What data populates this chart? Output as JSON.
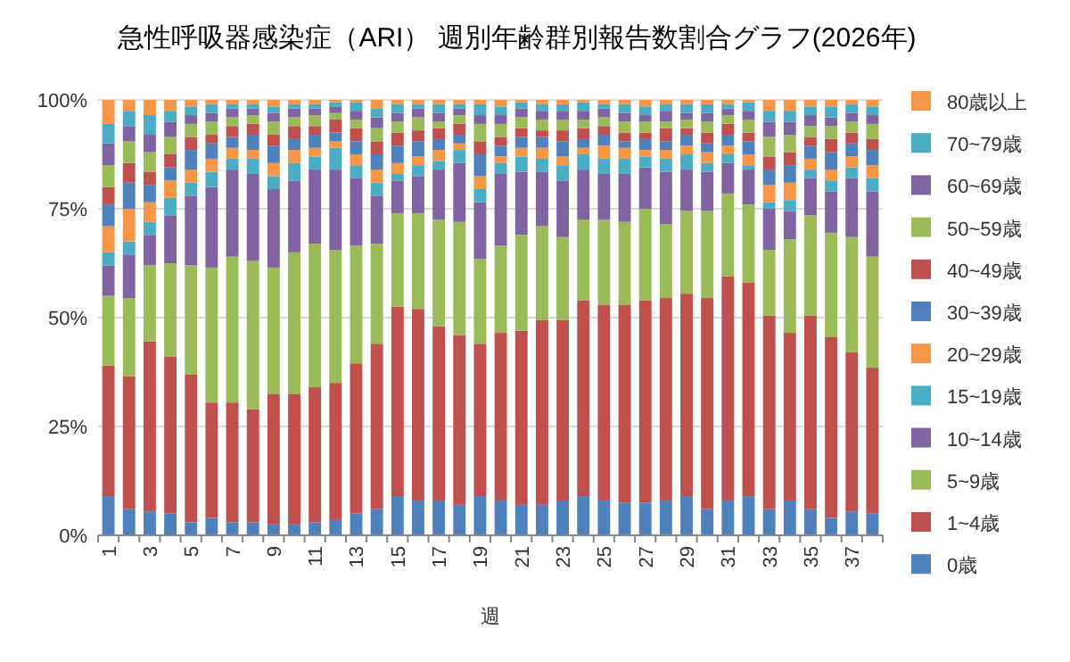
{
  "chart_data": {
    "type": "bar",
    "stacked": true,
    "title": "急性呼吸器感染症（ARI） 週別年齢群別報告数割合グラフ(2026年)",
    "xlabel": "週",
    "categories": [
      "1",
      null,
      "3",
      null,
      "5",
      null,
      "7",
      null,
      "9",
      null,
      "11",
      null,
      "13",
      null,
      "15",
      null,
      "17",
      null,
      "19",
      null,
      "21",
      null,
      "23",
      null,
      "25",
      null,
      "27",
      null,
      "29",
      null,
      "31",
      null,
      "33",
      null,
      "35",
      null,
      "37",
      null
    ],
    "ylim": [
      0,
      100
    ],
    "yticks": [
      {
        "value": 0,
        "label": "0%"
      },
      {
        "value": 25,
        "label": "25%"
      },
      {
        "value": 50,
        "label": "50%"
      },
      {
        "value": 75,
        "label": "75%"
      },
      {
        "value": 100,
        "label": "100%"
      }
    ],
    "grid": "y",
    "legend": "right",
    "series": [
      {
        "name": "0歳",
        "color": "#4f81bd",
        "values": [
          9,
          6,
          5.5,
          5,
          3,
          4,
          3,
          3,
          2.5,
          2.5,
          3,
          3.5,
          5,
          6,
          9,
          8,
          8,
          7,
          9,
          8,
          7,
          7,
          8,
          9,
          8,
          7.5,
          7.5,
          8,
          9,
          6,
          8,
          9,
          6,
          8,
          6,
          4,
          5.5,
          5
        ]
      },
      {
        "name": "1~4歳",
        "color": "#c0504d",
        "values": [
          30,
          30.5,
          39,
          36,
          34,
          26.5,
          27.5,
          26,
          30,
          30,
          31,
          31.5,
          34.5,
          38,
          43.5,
          44,
          40,
          39,
          35,
          38.5,
          40,
          42.5,
          41.5,
          45,
          45,
          45.5,
          46.5,
          46.5,
          46.5,
          48.5,
          51.5,
          49,
          44.5,
          38.5,
          44.5,
          41.5,
          36.5,
          33.5
        ]
      },
      {
        "name": "5~9歳",
        "color": "#9bbb59",
        "values": [
          16,
          18,
          17.5,
          21.5,
          25,
          31,
          33.5,
          34,
          29,
          32.5,
          33,
          30.5,
          27,
          23,
          21.5,
          22,
          24.5,
          26,
          19.5,
          20,
          22,
          21.5,
          19,
          18.5,
          19.5,
          19,
          21,
          17,
          19,
          20,
          19,
          18,
          15,
          21.5,
          23,
          24,
          26.5,
          25.5
        ]
      },
      {
        "name": "10~14歳",
        "color": "#8064a2",
        "values": [
          7,
          10,
          7,
          11,
          16,
          18.5,
          20,
          20,
          18,
          16.5,
          17,
          18.5,
          15.5,
          11,
          7.5,
          8.5,
          11.5,
          13.5,
          13,
          16.5,
          14.5,
          12.5,
          13,
          11.5,
          10.5,
          11,
          9.5,
          12,
          9.5,
          9,
          7,
          8,
          9.5,
          6.5,
          8.5,
          9.5,
          13.5,
          15
        ]
      },
      {
        "name": "15~19歳",
        "color": "#4bacc6",
        "values": [
          3,
          3,
          3,
          4,
          3,
          3.5,
          2.5,
          3.5,
          3,
          4,
          3,
          5,
          3,
          3,
          1.5,
          2.5,
          2,
          3,
          3,
          2.5,
          3.5,
          3,
          3.5,
          3.5,
          3.5,
          3.5,
          2.5,
          3,
          3.5,
          2,
          2,
          1,
          1.5,
          2.5,
          2,
          2.5,
          2.5,
          3
        ]
      },
      {
        "name": "20~29歳",
        "color": "#f79646",
        "values": [
          6,
          7.5,
          4.5,
          4,
          3,
          3,
          2.5,
          2,
          3,
          3,
          2,
          1.5,
          2.5,
          3,
          2.5,
          2,
          2.5,
          1.5,
          3,
          1.5,
          2,
          2.5,
          2,
          1.5,
          3,
          2.5,
          1.5,
          2,
          2,
          2.5,
          2,
          2.5,
          4,
          4,
          2.5,
          2.5,
          2.5,
          3
        ]
      },
      {
        "name": "30~39歳",
        "color": "#4f81bd",
        "values": [
          5,
          6,
          4,
          3,
          4.5,
          3.5,
          2.5,
          3.5,
          4,
          2.5,
          3,
          2,
          3,
          3.5,
          4,
          3.5,
          2.5,
          2,
          5,
          2.5,
          2.5,
          2.5,
          3.5,
          2,
          2.5,
          1.5,
          2.5,
          2,
          2.5,
          2,
          2.5,
          3,
          3.5,
          4,
          3,
          4,
          3,
          3.5
        ]
      },
      {
        "name": "40~49歳",
        "color": "#c0504d",
        "values": [
          4,
          4.5,
          3,
          3,
          3,
          2,
          2.5,
          2.5,
          2.5,
          3,
          2,
          3,
          3,
          3,
          3,
          2.5,
          2.5,
          2.5,
          3,
          2,
          2,
          1.5,
          2.5,
          2.5,
          2,
          2,
          1.5,
          3,
          1.5,
          2.5,
          2.5,
          2,
          3,
          3,
          2,
          3,
          2.5,
          2.5
        ]
      },
      {
        "name": "50~59歳",
        "color": "#9bbb59",
        "values": [
          5,
          5,
          4.5,
          4,
          3,
          3,
          2,
          2,
          3,
          2,
          2.5,
          1.5,
          2,
          3,
          2.5,
          3,
          1.5,
          2,
          4,
          3,
          2.5,
          2.5,
          2.5,
          2,
          2,
          2.5,
          2.5,
          1.5,
          2,
          2.5,
          2,
          3,
          4.5,
          4,
          2.5,
          3,
          2.5,
          3.5
        ]
      },
      {
        "name": "60~69歳",
        "color": "#8064a2",
        "values": [
          5,
          3.5,
          4,
          3.5,
          2,
          2,
          2,
          1.5,
          2,
          2,
          1.5,
          1.5,
          2,
          2.5,
          2,
          2,
          2,
          1.5,
          2,
          2,
          2,
          2,
          2,
          2,
          2,
          2,
          1.5,
          2.5,
          1.5,
          2,
          1.5,
          2,
          3.5,
          3,
          2.5,
          2,
          2,
          2
        ]
      },
      {
        "name": "70~79歳",
        "color": "#4bacc6",
        "values": [
          4.5,
          3.5,
          4.5,
          2.5,
          2,
          2,
          1,
          1,
          1.5,
          1,
          1,
          1,
          2,
          2,
          2,
          1,
          2,
          1,
          2.5,
          2,
          1.5,
          1.5,
          1.5,
          2,
          1,
          2,
          2,
          1.5,
          2,
          2,
          1,
          2,
          2.5,
          2.5,
          2,
          2.5,
          2,
          2
        ]
      },
      {
        "name": "80歳以上",
        "color": "#f79646",
        "values": [
          5.5,
          2.5,
          3.5,
          2.5,
          1.5,
          1,
          1,
          1,
          1.5,
          1,
          1,
          0.5,
          0.5,
          2,
          1,
          1,
          1,
          1,
          1,
          1.5,
          0.5,
          1,
          1,
          0.5,
          1,
          1,
          1.5,
          1,
          1,
          1,
          1,
          0.5,
          2.5,
          2.5,
          1.5,
          1.5,
          1,
          1.5
        ]
      }
    ]
  }
}
